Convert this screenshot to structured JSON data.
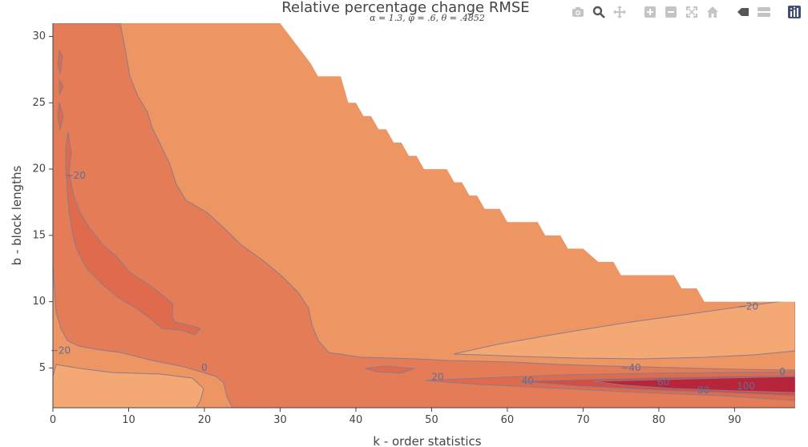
{
  "chart_data": {
    "type": "contour",
    "title": "Relative percentage change RMSE",
    "subtitle": "α = 1.3, φ = .6, θ = .4852",
    "xlabel": "k - order statistics",
    "ylabel": "b - block lengths",
    "xlim": [
      0,
      98
    ],
    "ylim": [
      2,
      31
    ],
    "x_ticks": [
      0,
      10,
      20,
      30,
      40,
      50,
      60,
      70,
      80,
      90
    ],
    "y_ticks": [
      5,
      10,
      15,
      20,
      25,
      30
    ],
    "grid": false,
    "colorscale": [
      "#e06b4c",
      "#e47c57",
      "#ed9563",
      "#f4a874",
      "#b8243a"
    ],
    "nan_boundary": [
      [
        30,
        31
      ],
      [
        34,
        28
      ],
      [
        35,
        27
      ],
      [
        38,
        27
      ],
      [
        39,
        25
      ],
      [
        40,
        25
      ],
      [
        41,
        24
      ],
      [
        42,
        24
      ],
      [
        43,
        23
      ],
      [
        44,
        23
      ],
      [
        45,
        22
      ],
      [
        46,
        22
      ],
      [
        47,
        21
      ],
      [
        48,
        21
      ],
      [
        49,
        20
      ],
      [
        52,
        20
      ],
      [
        53,
        19
      ],
      [
        54,
        19
      ],
      [
        55,
        18
      ],
      [
        56,
        18
      ],
      [
        57,
        17
      ],
      [
        59,
        17
      ],
      [
        60,
        16
      ],
      [
        64,
        16
      ],
      [
        65,
        15
      ],
      [
        67,
        15
      ],
      [
        68,
        14
      ],
      [
        70,
        14
      ],
      [
        72,
        13
      ],
      [
        74,
        13
      ],
      [
        75,
        12
      ],
      [
        82,
        12
      ],
      [
        83,
        11
      ],
      [
        85,
        11
      ],
      [
        86,
        10
      ],
      [
        98,
        10
      ]
    ],
    "contour_levels": [
      -20,
      0,
      20,
      40,
      60,
      80,
      100
    ],
    "contour_labels": [
      {
        "text": "−20",
        "x": 3.0,
        "y": 19.5
      },
      {
        "text": "−20",
        "x": 1.0,
        "y": 6.3
      },
      {
        "text": "0",
        "x": 20.0,
        "y": 5.0
      },
      {
        "text": "20",
        "x": 50.8,
        "y": 4.3
      },
      {
        "text": "40",
        "x": 62.7,
        "y": 4.0
      },
      {
        "text": "−40",
        "x": 76.3,
        "y": 5.0
      },
      {
        "text": "60",
        "x": 80.6,
        "y": 3.9
      },
      {
        "text": "80",
        "x": 85.9,
        "y": 3.3
      },
      {
        "text": "100",
        "x": 91.5,
        "y": 3.6
      },
      {
        "text": "0",
        "x": 96.3,
        "y": 4.7
      },
      {
        "text": "−20",
        "x": 91.8,
        "y": 9.6
      }
    ]
  },
  "modebar": {
    "icons": [
      "camera-icon",
      "zoom-icon",
      "pan-icon",
      "zoom-in-icon",
      "zoom-out-icon",
      "autoscale-icon",
      "home-icon",
      "spike-lines-icon",
      "compare-hover-icon",
      "plotly-logo-icon"
    ]
  }
}
